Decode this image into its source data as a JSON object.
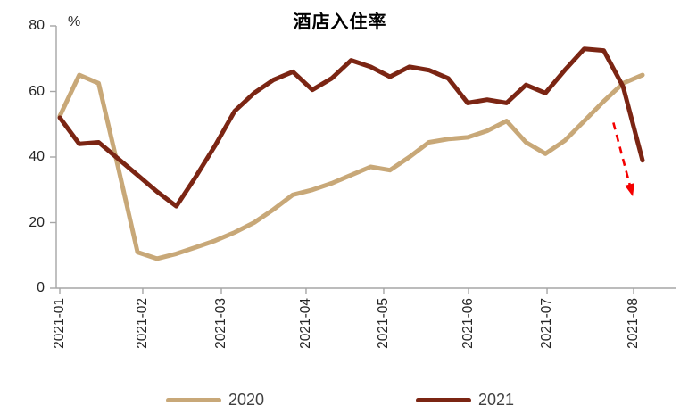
{
  "title": "酒店入住率",
  "y_axis": {
    "unit_label": "%",
    "ticks": [
      "0",
      "20",
      "40",
      "60",
      "80"
    ],
    "min": 0,
    "max": 80
  },
  "x_axis": {
    "tick_labels": [
      "2021-01",
      "2021-02",
      "2021-03",
      "2021-04",
      "2021-05",
      "2021-06",
      "2021-07",
      "2021-08"
    ]
  },
  "legend": {
    "items": [
      {
        "label": "2020",
        "color": "#C8A878"
      },
      {
        "label": "2021",
        "color": "#7B2513"
      }
    ]
  },
  "chart_data": {
    "type": "line",
    "title": "酒店入住率",
    "ylabel": "%",
    "ylim": [
      0,
      80
    ],
    "grid": false,
    "legend_position": "bottom",
    "x_unit": "weekly observations, 2021-01 through 2021-08",
    "x_tick_labels": [
      "2021-01",
      "2021-02",
      "2021-03",
      "2021-04",
      "2021-05",
      "2021-06",
      "2021-07",
      "2021-08"
    ],
    "series": [
      {
        "name": "2020",
        "color": "#C8A878",
        "values": [
          52.5,
          65,
          62.5,
          37,
          11,
          9,
          10.5,
          12.5,
          14.5,
          17,
          20,
          24,
          28.5,
          30,
          32,
          34.5,
          37,
          36,
          40,
          44.5,
          45.5,
          46,
          48,
          51,
          44.5,
          41,
          45,
          51,
          57,
          62.5,
          65
        ]
      },
      {
        "name": "2021",
        "color": "#7B2513",
        "values": [
          52,
          44,
          44.5,
          39.5,
          34.5,
          29.5,
          25,
          34,
          43.5,
          54,
          59.5,
          63.5,
          66,
          60.5,
          64,
          69.5,
          67.5,
          64.5,
          67.5,
          66.5,
          64,
          56.5,
          57.5,
          56.5,
          62,
          59.5,
          66.5,
          73,
          72.5,
          61.5,
          39
        ]
      }
    ],
    "annotations": [
      {
        "type": "arrow",
        "style": "dashed",
        "color": "#F40000",
        "note": "sharp drop of 2021 line at period end",
        "from": {
          "week": 28.5,
          "value": 50.5
        },
        "to": {
          "week": 29.5,
          "value": 28
        }
      }
    ]
  }
}
